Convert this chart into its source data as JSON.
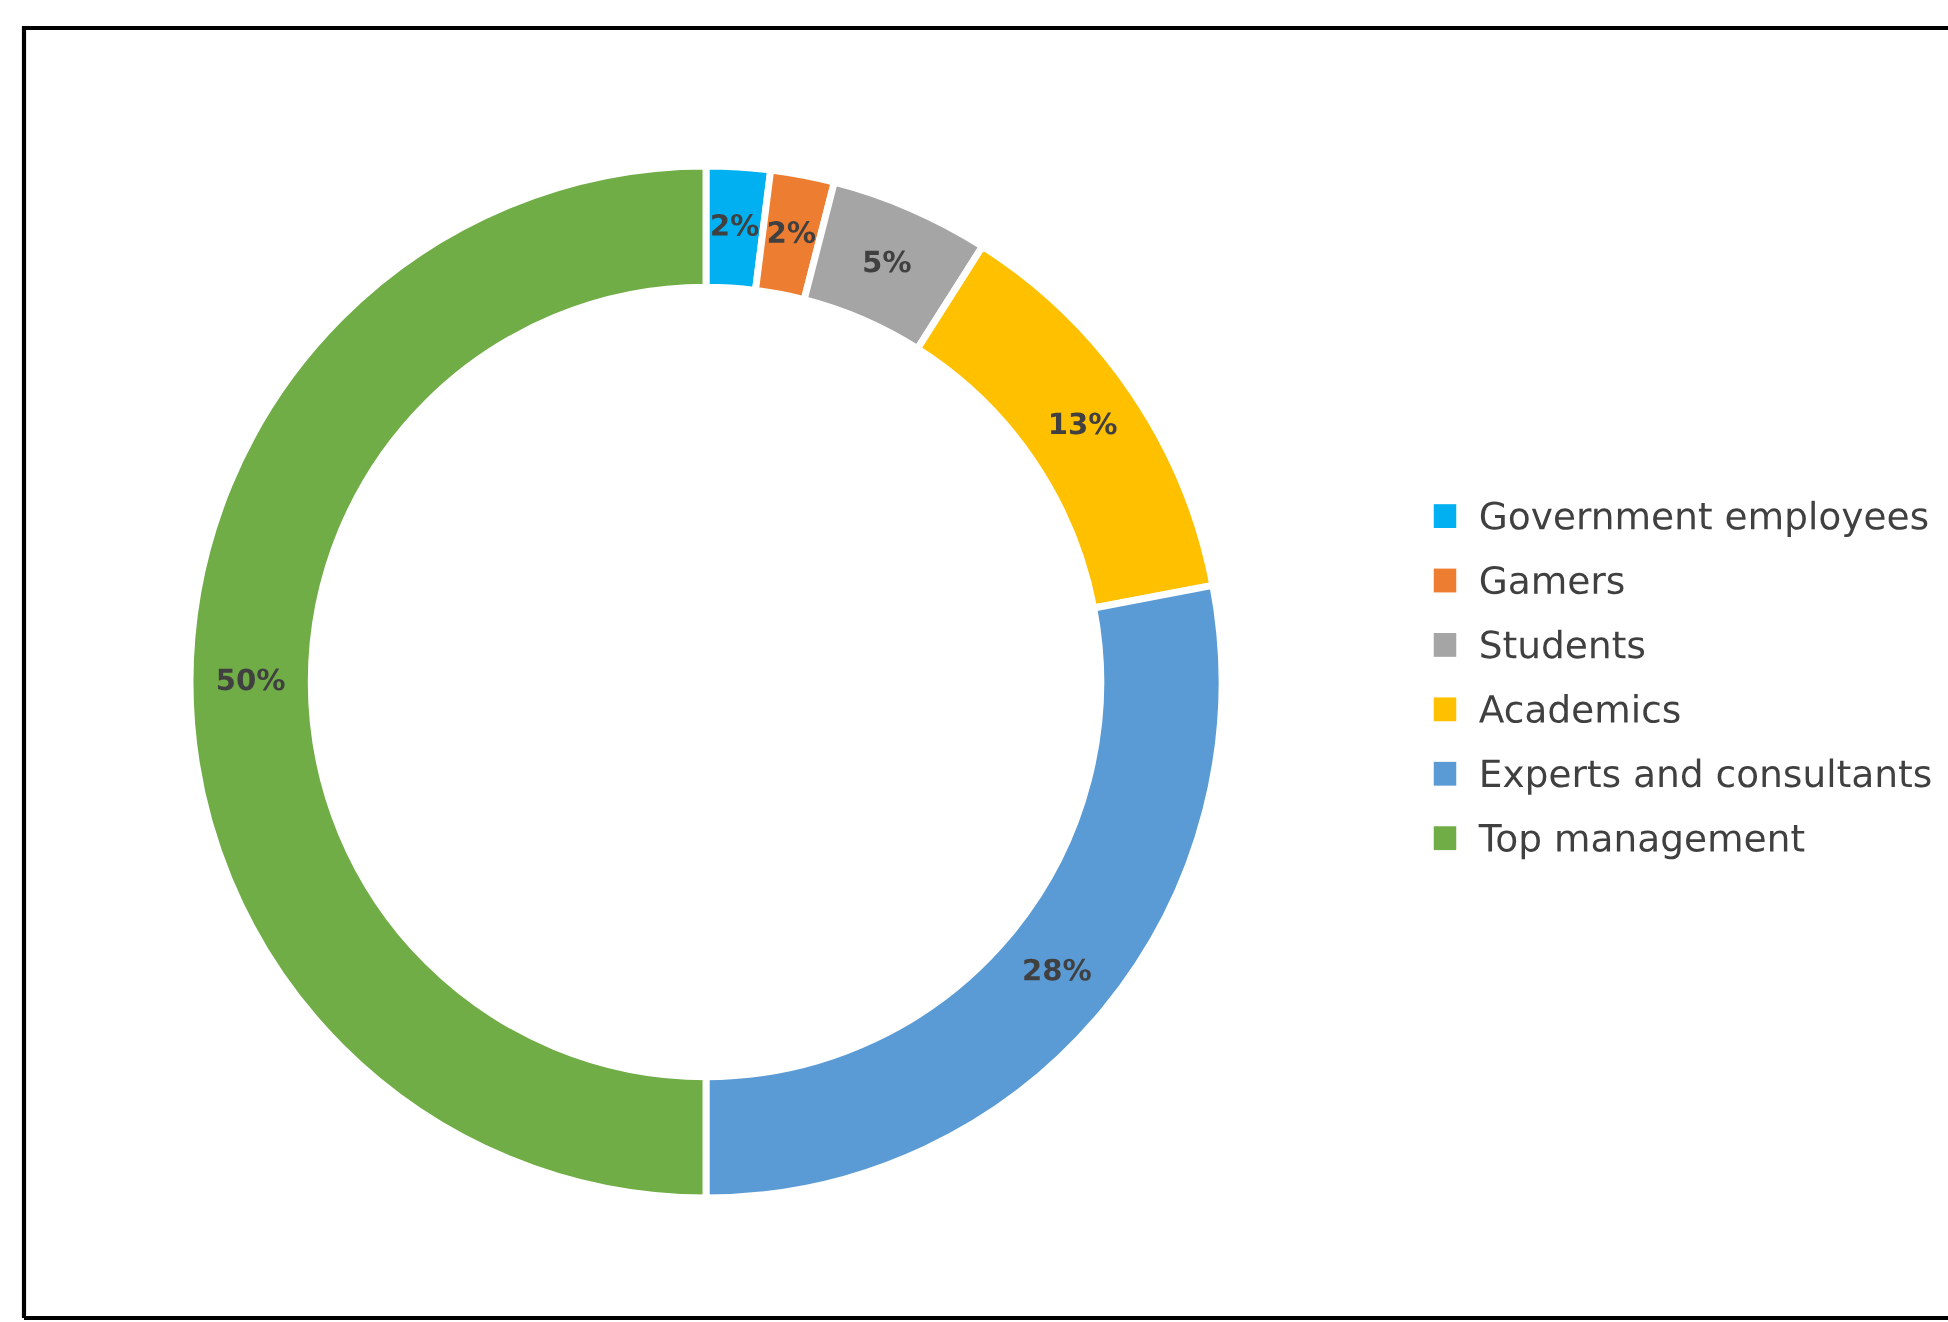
{
  "chart_data": {
    "type": "donut",
    "categories": [
      "Government employees",
      "Gamers",
      "Students",
      "Academics",
      "Experts and consultants",
      "Top management"
    ],
    "values": [
      2,
      2,
      5,
      13,
      28,
      50
    ],
    "colors": [
      "#00b0f0",
      "#ed7d31",
      "#a5a5a5",
      "#ffc000",
      "#5b9bd5",
      "#70ad47"
    ],
    "value_labels": [
      "2%",
      "2%",
      "5%",
      "13%",
      "28%",
      "50%"
    ],
    "legend": "right"
  }
}
